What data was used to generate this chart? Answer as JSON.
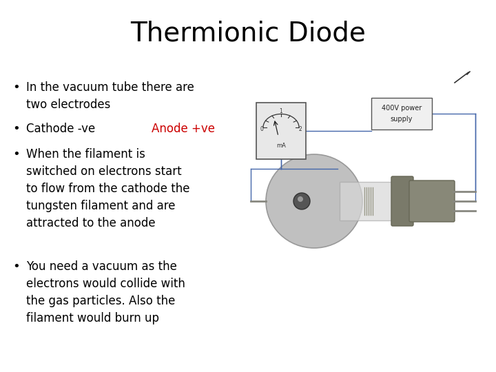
{
  "title": "Thermionic Diode",
  "title_fontsize": 28,
  "background_color": "#ffffff",
  "text_color": "#000000",
  "anode_color": "#cc0000",
  "bullets": [
    "In the vacuum tube there are\ntwo electrodes",
    "Cathode -ve",
    "When the filament is\nswitched on electrons start\nto flow from the cathode the\ntungsten filament and are\nattracted to the anode",
    "You need a vacuum as the\nelectrons would collide with\nthe gas particles. Also the\nfilament would burn up"
  ],
  "anode_text": "Anode +ve",
  "bullet_fontsize": 12,
  "wire_color": "#6688bb",
  "wire_lw": 1.0,
  "meter_color": "#dddddd",
  "ps_color": "#f5f5f5",
  "tube_bulb_color": "#c8c8c8",
  "tube_body_color": "#7a7a6a",
  "tube_neck_color": "#999988",
  "diagram_wire_color": "#4466aa"
}
